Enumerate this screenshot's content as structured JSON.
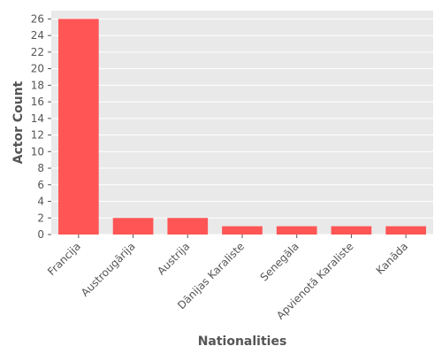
{
  "chart_data": {
    "type": "bar",
    "title": "",
    "xlabel": "Nationalities",
    "ylabel": "Actor Count",
    "categories": [
      "Francija",
      "Austrougārija",
      "Austrija",
      "Dānijas Karaliste",
      "Senegāla",
      "Apvienotā Karaliste",
      "Kanāda"
    ],
    "values": [
      26,
      2,
      2,
      1,
      1,
      1,
      1
    ],
    "ylim": [
      0,
      27
    ],
    "yticks": [
      0,
      2,
      4,
      6,
      8,
      10,
      12,
      14,
      16,
      18,
      20,
      22,
      24,
      26
    ],
    "grid": true,
    "colors": {
      "bar": "#ff5555",
      "plot_background": "#e9e9e9",
      "grid": "#ffffff",
      "text": "#555555"
    }
  }
}
